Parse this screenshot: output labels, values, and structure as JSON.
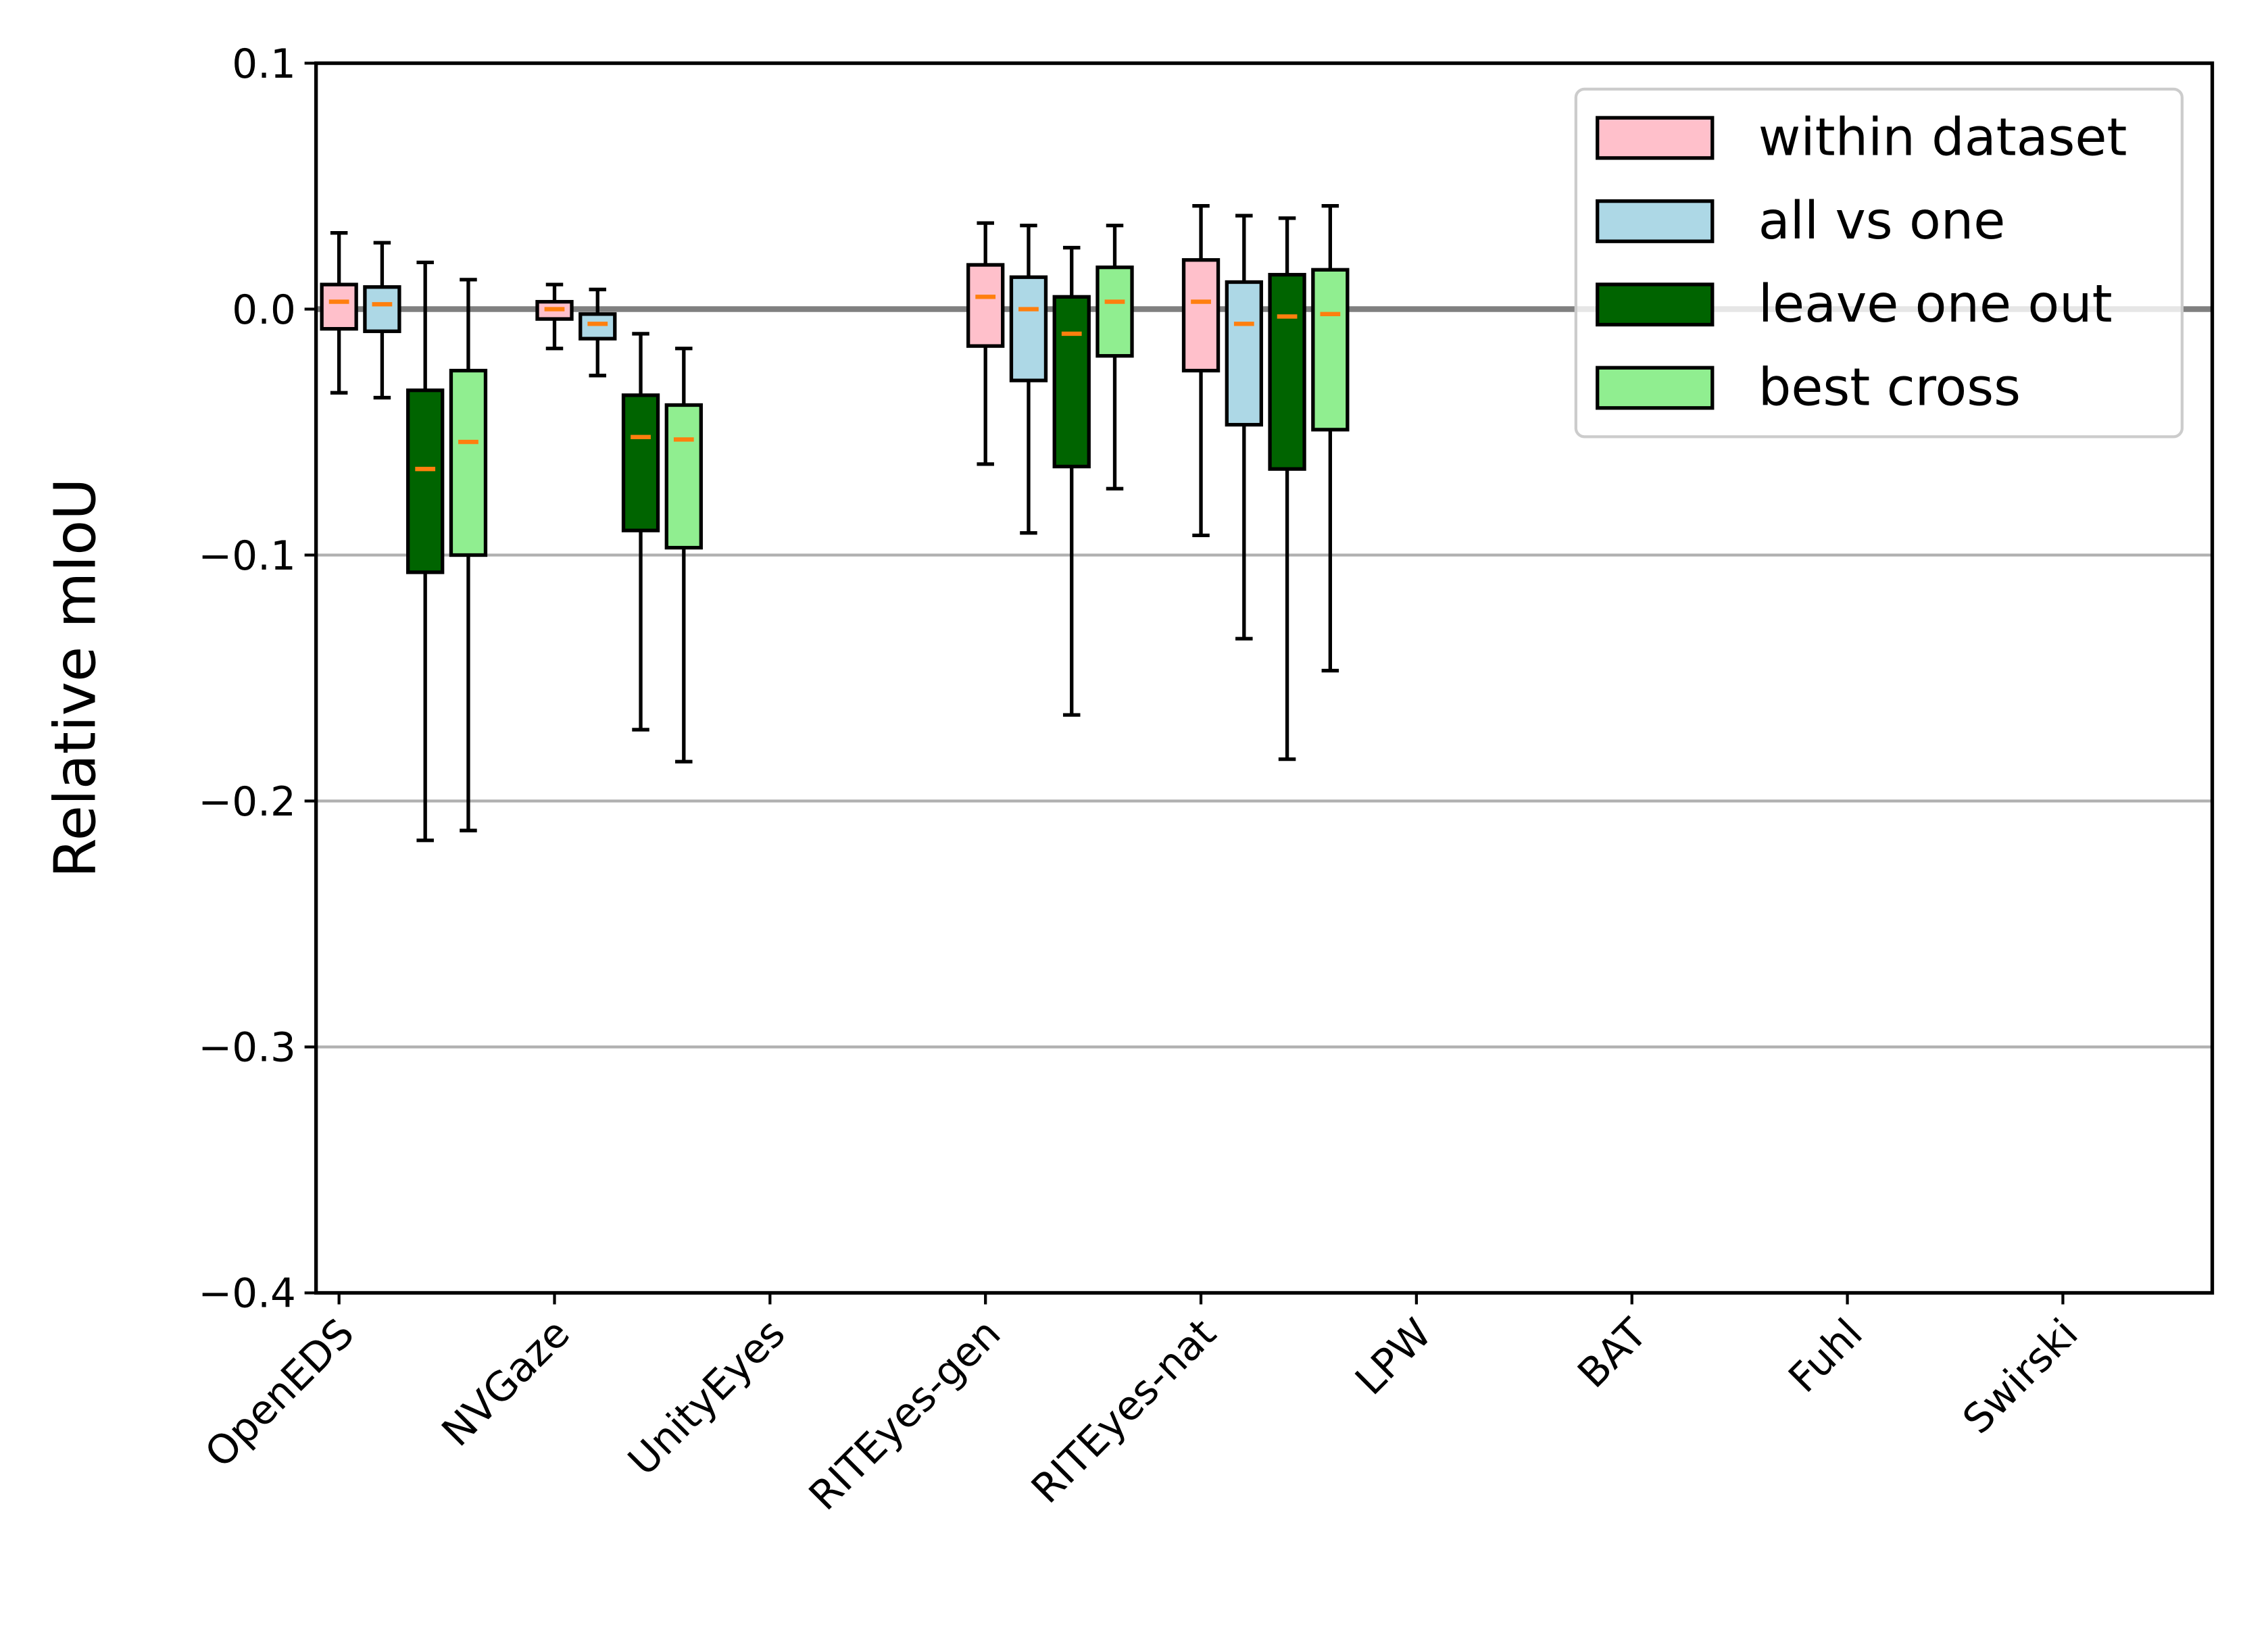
{
  "chart_data": {
    "type": "boxplot",
    "ylabel": "Relative mIoU",
    "categories": [
      "OpenEDS",
      "NVGaze",
      "UnityEyes",
      "RITEyes-gen",
      "RITEyes-nat",
      "LPW",
      "BAT",
      "Fuhl",
      "Swirski"
    ],
    "ylim": [
      -0.4,
      0.1
    ],
    "yticks": [
      {
        "value": -0.4,
        "label": "−0.4"
      },
      {
        "value": -0.3,
        "label": "−0.3"
      },
      {
        "value": -0.2,
        "label": "−0.2"
      },
      {
        "value": -0.1,
        "label": "−0.1"
      },
      {
        "value": 0,
        "label": "0.0"
      },
      0.1
    ],
    "grid": true,
    "hline": 0,
    "median_color": "#ff7f0e",
    "legend": "upper right",
    "series": [
      {
        "name": "within dataset",
        "color": "#ffc0cb",
        "values": [
          {
            "whislo": -0.034,
            "q1": -0.008,
            "med": 0.003,
            "q3": 0.01,
            "whishi": 0.031
          },
          {
            "whislo": -0.016,
            "q1": -0.004,
            "med": 0.0,
            "q3": 0.003,
            "whishi": 0.01
          },
          null,
          {
            "whislo": -0.063,
            "q1": -0.015,
            "med": 0.005,
            "q3": 0.018,
            "whishi": 0.035
          },
          {
            "whislo": -0.092,
            "q1": -0.025,
            "med": 0.003,
            "q3": 0.02,
            "whishi": 0.042
          },
          null,
          null,
          null,
          null
        ]
      },
      {
        "name": "all vs one",
        "color": "#add8e6",
        "values": [
          {
            "whislo": -0.036,
            "q1": -0.009,
            "med": 0.002,
            "q3": 0.009,
            "whishi": 0.027
          },
          {
            "whislo": -0.027,
            "q1": -0.012,
            "med": -0.006,
            "q3": -0.002,
            "whishi": 0.008
          },
          null,
          {
            "whislo": -0.091,
            "q1": -0.029,
            "med": 0.0,
            "q3": 0.013,
            "whishi": 0.034
          },
          {
            "whislo": -0.134,
            "q1": -0.047,
            "med": -0.006,
            "q3": 0.011,
            "whishi": 0.038
          },
          null,
          null,
          null,
          null
        ]
      },
      {
        "name": "leave one out",
        "color": "#006400",
        "values": [
          {
            "whislo": -0.216,
            "q1": -0.107,
            "med": -0.065,
            "q3": -0.033,
            "whishi": 0.019
          },
          {
            "whislo": -0.171,
            "q1": -0.09,
            "med": -0.052,
            "q3": -0.035,
            "whishi": -0.01
          },
          null,
          {
            "whislo": -0.165,
            "q1": -0.064,
            "med": -0.01,
            "q3": 0.005,
            "whishi": 0.025
          },
          {
            "whislo": -0.183,
            "q1": -0.065,
            "med": -0.003,
            "q3": 0.014,
            "whishi": 0.037
          },
          null,
          null,
          null,
          null
        ]
      },
      {
        "name": "best cross",
        "color": "#90ee90",
        "values": [
          {
            "whislo": -0.212,
            "q1": -0.1,
            "med": -0.054,
            "q3": -0.025,
            "whishi": 0.012
          },
          {
            "whislo": -0.184,
            "q1": -0.097,
            "med": -0.053,
            "q3": -0.039,
            "whishi": -0.016
          },
          null,
          {
            "whislo": -0.073,
            "q1": -0.019,
            "med": 0.003,
            "q3": 0.017,
            "whishi": 0.034
          },
          {
            "whislo": -0.147,
            "q1": -0.049,
            "med": -0.002,
            "q3": 0.016,
            "whishi": 0.042
          },
          null,
          null,
          null,
          null
        ]
      }
    ]
  }
}
